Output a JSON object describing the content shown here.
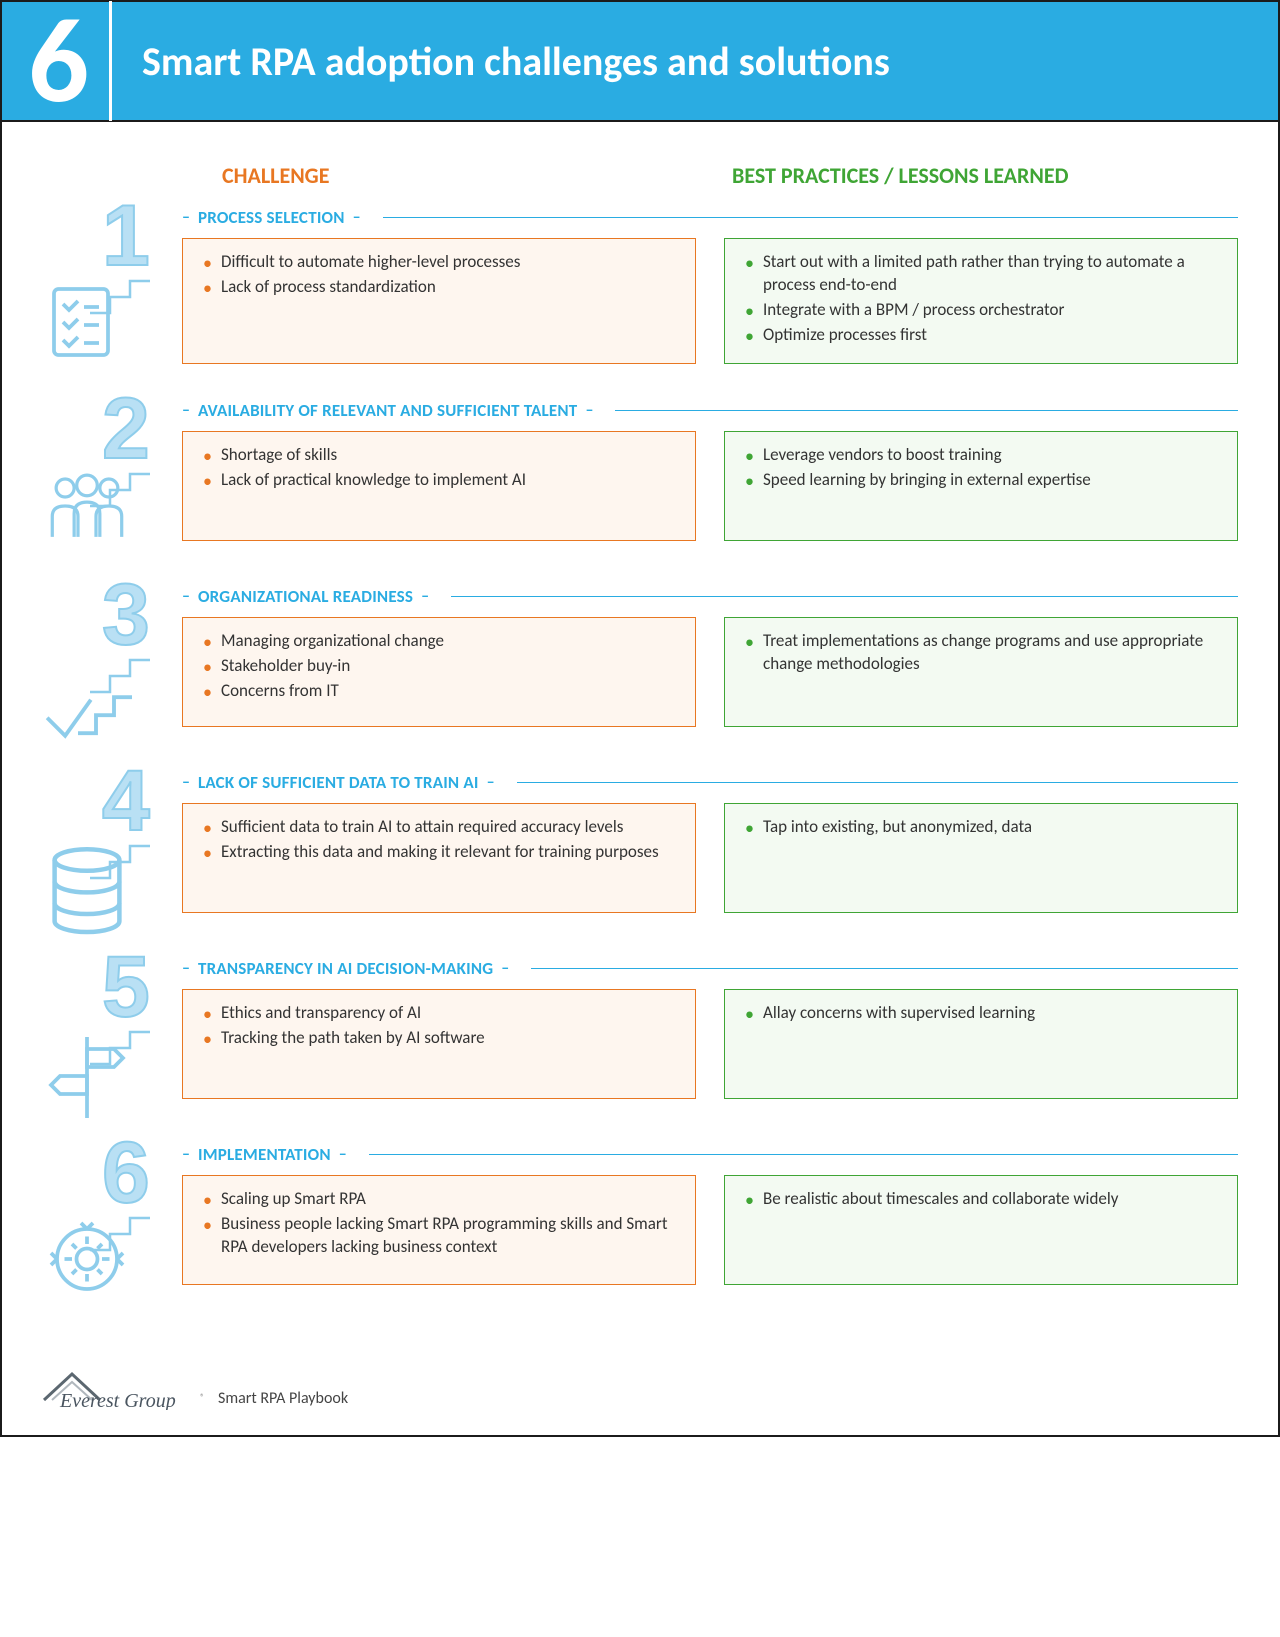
{
  "page": {
    "number": "6",
    "title": "Smart RPA adoption challenges and solutions"
  },
  "colors": {
    "header_bg": "#2aace2",
    "challenge": "#e87722",
    "bestpractice": "#3fa535",
    "section_title": "#2aace2",
    "big_num": "#b9e0f4",
    "challenge_bg": "#fef6ef",
    "bp_bg": "#f3faf2",
    "text": "#333333"
  },
  "column_headers": {
    "challenge": "CHALLENGE",
    "best_practices": "BEST PRACTICES / LESSONS LEARNED"
  },
  "sections": [
    {
      "num": "1",
      "title": "PROCESS SELECTION",
      "icon": "checklist",
      "challenges": [
        "Difficult to automate higher-level processes",
        "Lack of process standardization"
      ],
      "best_practices": [
        "Start out with a limited path rather than trying to automate a process end-to-end",
        "Integrate with a BPM / process orchestrator",
        "Optimize processes first"
      ]
    },
    {
      "num": "2",
      "title": "AVAILABILITY OF RELEVANT AND SUFFICIENT TALENT",
      "icon": "people",
      "challenges": [
        "Shortage of skills",
        "Lack of practical knowledge to implement AI"
      ],
      "best_practices": [
        "Leverage vendors to boost training",
        "Speed learning by bringing in external expertise"
      ]
    },
    {
      "num": "3",
      "title": "ORGANIZATIONAL READINESS",
      "icon": "steps-check",
      "challenges": [
        "Managing organizational change",
        "Stakeholder buy-in",
        "Concerns from IT"
      ],
      "best_practices": [
        "Treat implementations as change programs and use appropriate change methodologies"
      ]
    },
    {
      "num": "4",
      "title": "LACK OF SUFFICIENT DATA TO TRAIN AI",
      "icon": "database",
      "challenges": [
        "Sufficient data to train AI to attain required accuracy levels",
        "Extracting this data and making it relevant for training purposes"
      ],
      "best_practices": [
        "Tap into existing, but anonymized, data"
      ]
    },
    {
      "num": "5",
      "title": "TRANSPARENCY IN AI DECISION-MAKING",
      "icon": "signpost",
      "challenges": [
        "Ethics and transparency of AI",
        "Tracking the path taken by AI software"
      ],
      "best_practices": [
        "Allay concerns with supervised learning"
      ]
    },
    {
      "num": "6",
      "title": "IMPLEMENTATION",
      "icon": "gear-cycle",
      "challenges": [
        "Scaling up Smart RPA",
        "Business people lacking Smart RPA programming skills and Smart RPA developers lacking business context"
      ],
      "best_practices": [
        "Be realistic about timescales and collaborate widely"
      ]
    }
  ],
  "footer": {
    "brand": "Everest Group",
    "tagline": "Smart RPA Playbook"
  }
}
